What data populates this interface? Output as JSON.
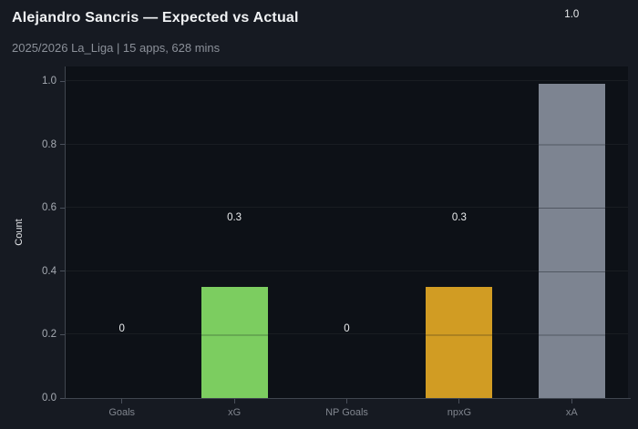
{
  "header": {
    "title": "Alejandro Sancris — Expected vs Actual",
    "subtitle": "2025/2026 La_Liga | 15 apps, 628 mins"
  },
  "chart_data": {
    "type": "bar",
    "title": "Alejandro Sancris — Expected vs Actual",
    "subtitle": "2025/2026 La_Liga | 15 apps, 628 mins",
    "categories": [
      "Goals",
      "xG",
      "NP Goals",
      "npxG",
      "xA"
    ],
    "values": [
      0,
      0.35,
      0,
      0.35,
      0.99
    ],
    "bar_value_labels": [
      "0",
      "0.3",
      "0",
      "0.3",
      "1.0"
    ],
    "bar_colors": [
      null,
      "#7ccd60",
      null,
      "#d19c23",
      "#7d8491"
    ],
    "xlabel": "",
    "ylabel": "Count",
    "ytick_values": [
      0,
      0.2,
      0.4,
      0.6,
      0.8,
      1.0
    ],
    "ytick_labels": [
      "0.0",
      "0.2",
      "0.4",
      "0.6",
      "0.8",
      "1.0"
    ],
    "ylim": [
      0,
      1.046
    ],
    "grid": "horizontal-faint",
    "legend": "none",
    "colors": {
      "page_bg": "#161a22",
      "plot_bg": "#0d1117",
      "spine": "#40464f",
      "goal_green": "#7ccd60",
      "npxg_gold": "#d19c23",
      "xa_gray": "#7d8491",
      "title_text": "#f0f2f4",
      "subtitle_text": "#8b9099",
      "ytick_text": "#a6abb3",
      "xtick_text": "#81868f",
      "value_label_text": "#e9ebed"
    }
  }
}
